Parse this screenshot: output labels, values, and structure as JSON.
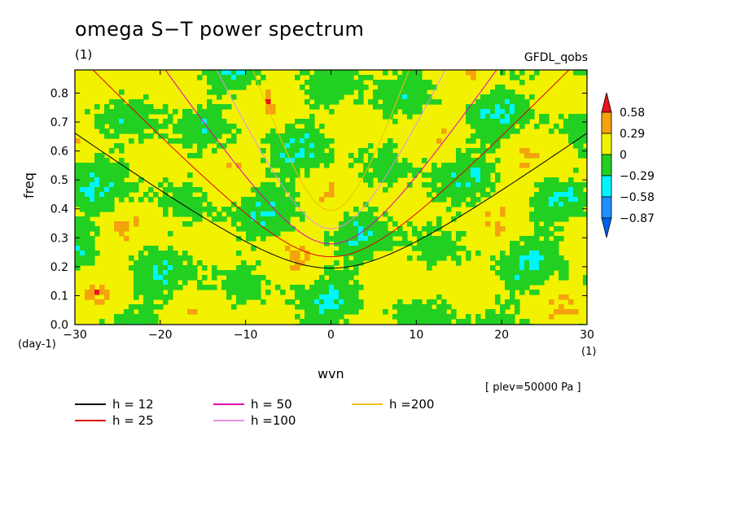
{
  "title": "omega S−T power spectrum",
  "unit_left": "(1)",
  "dataset": "GFDL_qobs",
  "footnote": "[ plev=50000 Pa ]",
  "colorbar": {
    "labels": [
      "0.58",
      "0.29",
      "0",
      "−0.29",
      "−0.58",
      "−0.87"
    ],
    "colors": [
      "#e8141e",
      "#f5a20f",
      "#f2f200",
      "#22d022",
      "#00f5ff",
      "#1e90ff",
      "#0060f0"
    ]
  },
  "chart_data": {
    "type": "heatmap",
    "title": "omega S−T power spectrum",
    "xlabel": "wvn",
    "ylabel": "freq",
    "x_unit": "(1)",
    "y_unit": "(day-1)",
    "xlim": [
      -30,
      30
    ],
    "ylim": [
      0,
      0.88
    ],
    "xticks": [
      -30,
      -20,
      -10,
      0,
      10,
      20,
      30
    ],
    "yticks": [
      0.0,
      0.1,
      0.2,
      0.3,
      0.4,
      0.5,
      0.6,
      0.7,
      0.8
    ],
    "ytick_labels": [
      "0.0",
      "0.1",
      "0.2",
      "0.3",
      "0.4",
      "0.5",
      "0.6",
      "0.7",
      "0.8"
    ],
    "colorbar_levels": [
      0.58,
      0.29,
      0,
      -0.29,
      -0.58,
      -0.87
    ],
    "legend": [
      {
        "label": "h = 12",
        "color": "#000000",
        "h": 12
      },
      {
        "label": "h = 25",
        "color": "#e00000",
        "h": 25
      },
      {
        "label": "h = 50",
        "color": "#e000b0",
        "h": 50
      },
      {
        "label": "h =100",
        "color": "#e090e0",
        "h": 100
      },
      {
        "label": "h =200",
        "color": "#f0c000",
        "h": 200
      }
    ]
  }
}
